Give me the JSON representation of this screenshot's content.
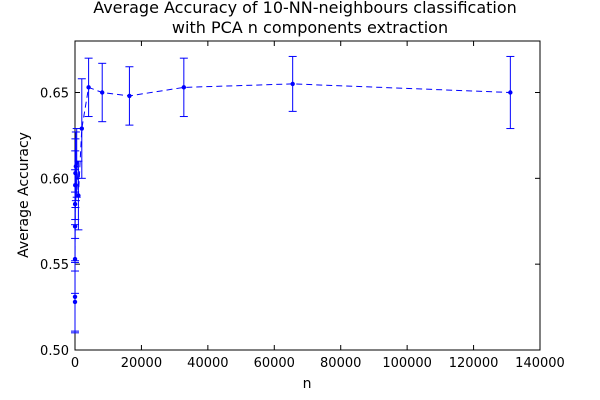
{
  "chart_data": {
    "type": "line",
    "title_lines": [
      "Average Accuracy of 10-NN-neighbours classification",
      "with PCA n components extraction"
    ],
    "xlabel": "n",
    "ylabel": "Average Accuracy",
    "xlim": [
      0,
      140000
    ],
    "ylim": [
      0.5,
      0.68
    ],
    "x_ticks": [
      0,
      20000,
      40000,
      60000,
      80000,
      100000,
      120000,
      140000
    ],
    "y_ticks": [
      0.5,
      0.55,
      0.6,
      0.65
    ],
    "y_tick_labels": [
      "0.50",
      "0.55",
      "0.60",
      "0.65"
    ],
    "grid": false,
    "line_style": "dashed",
    "marker": "dot",
    "color": "#0000ff",
    "series": [
      {
        "x": [
          2,
          4,
          8,
          16,
          32,
          64,
          128,
          256,
          512,
          1024,
          2048,
          4096,
          8192,
          16384,
          32768,
          65536,
          131072
        ],
        "y": [
          0.528,
          0.531,
          0.553,
          0.572,
          0.585,
          0.596,
          0.603,
          0.607,
          0.609,
          0.59,
          0.629,
          0.653,
          0.65,
          0.648,
          0.653,
          0.655,
          0.65
        ],
        "err": [
          0.018,
          0.02,
          0.02,
          0.02,
          0.02,
          0.02,
          0.02,
          0.02,
          0.02,
          0.02,
          0.029,
          0.017,
          0.017,
          0.017,
          0.017,
          0.016,
          0.021
        ]
      }
    ]
  }
}
